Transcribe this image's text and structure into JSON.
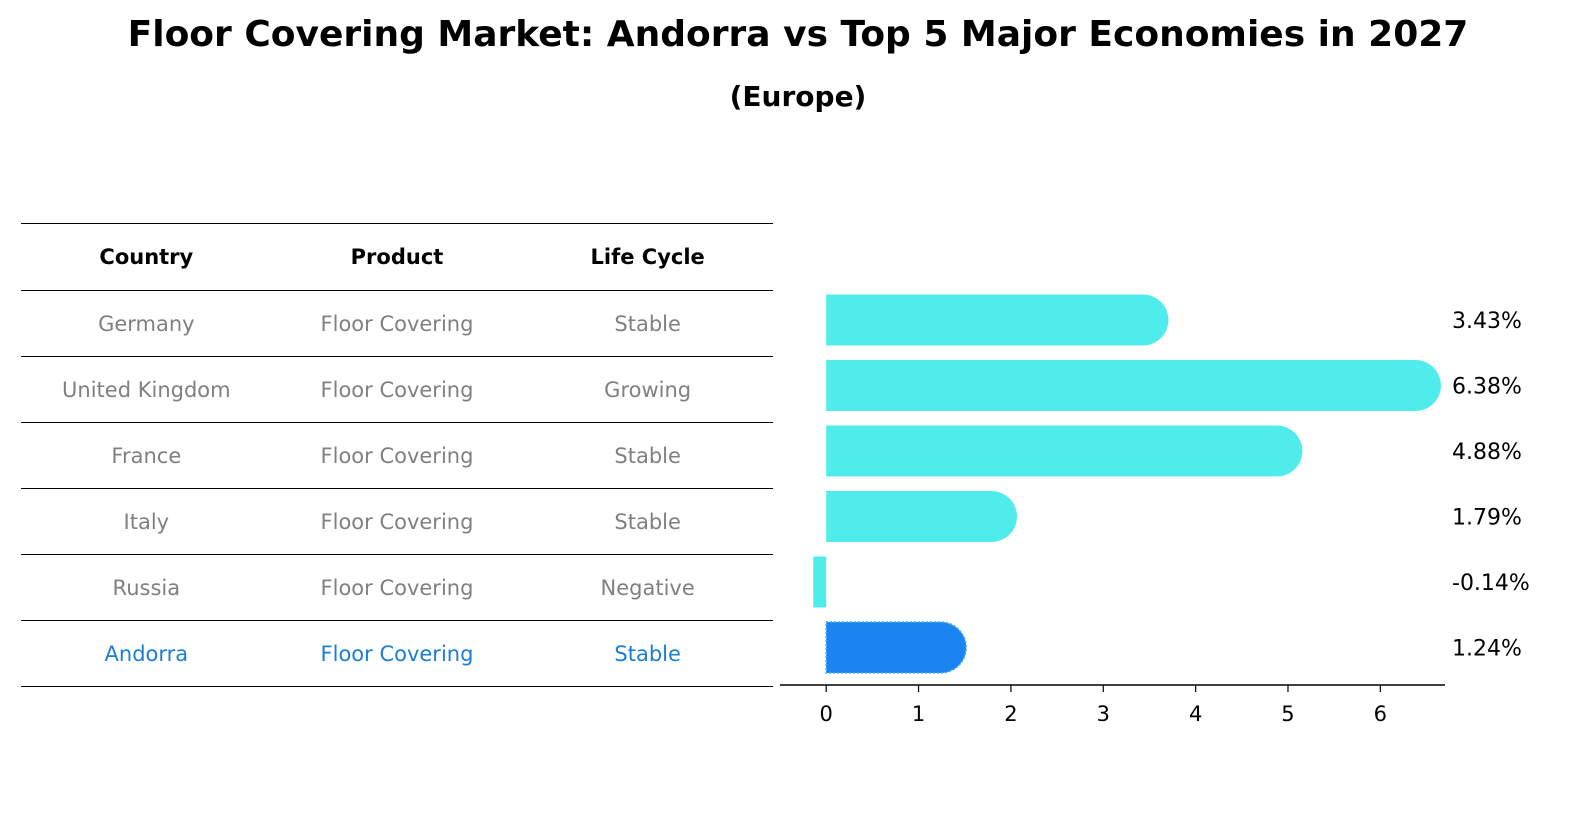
{
  "title": "Floor Covering Market: Andorra vs Top 5 Major Economies in 2027",
  "subtitle": "(Europe)",
  "table": {
    "headers": [
      "Country",
      "Product",
      "Life Cycle"
    ],
    "rows": [
      {
        "country": "Germany",
        "product": "Floor Covering",
        "life_cycle": "Stable"
      },
      {
        "country": "United Kingdom",
        "product": "Floor Covering",
        "life_cycle": "Growing"
      },
      {
        "country": "France",
        "product": "Floor Covering",
        "life_cycle": "Stable"
      },
      {
        "country": "Italy",
        "product": "Floor Covering",
        "life_cycle": "Stable"
      },
      {
        "country": "Russia",
        "product": "Floor Covering",
        "life_cycle": "Negative"
      },
      {
        "country": "Andorra",
        "product": "Floor Covering",
        "life_cycle": "Stable"
      }
    ]
  },
  "colors": {
    "bar": "#50ecec",
    "highlight_bar": "#1a85f0",
    "highlight_text": "#1a7fd4",
    "muted_text": "#808080"
  },
  "chart_data": {
    "type": "bar",
    "orientation": "horizontal",
    "categories": [
      "Germany",
      "United Kingdom",
      "France",
      "Italy",
      "Russia",
      "Andorra"
    ],
    "values": [
      3.43,
      6.38,
      4.88,
      1.79,
      -0.14,
      1.24
    ],
    "value_labels": [
      "3.43%",
      "6.38%",
      "4.88%",
      "1.79%",
      "-0.14%",
      "1.24%"
    ],
    "highlight": "Andorra",
    "xlim": [
      -0.5,
      6.7
    ],
    "xticks": [
      0,
      1,
      2,
      3,
      4,
      5,
      6
    ],
    "grid": false
  }
}
